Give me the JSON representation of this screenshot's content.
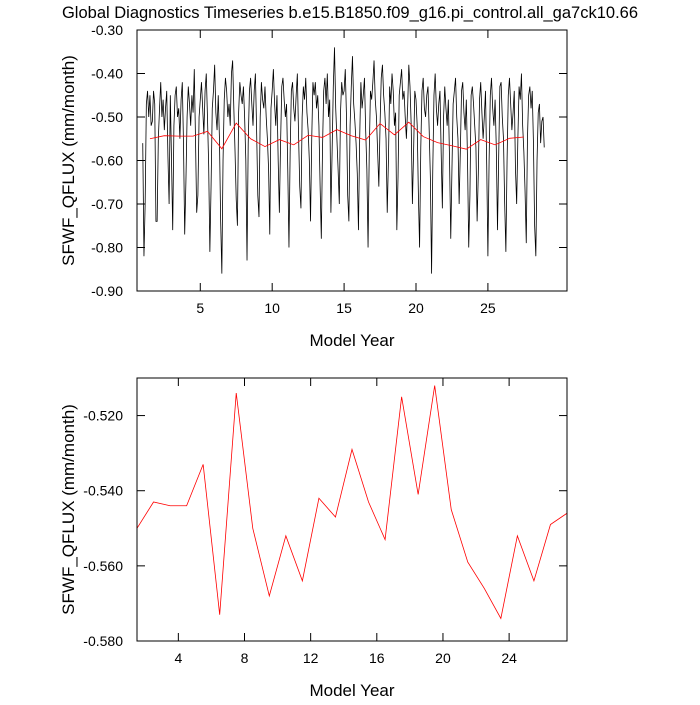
{
  "chart_data": [
    {
      "type": "line",
      "title": "Global Diagnostics Timeseries b.e15.B1850.f09_g16.pi_control.all_ga7ck10.66",
      "x_label": "Model Year",
      "y_label": "SFWF_QFLUX (mm/month)",
      "xlim": [
        0.6,
        30.5
      ],
      "xticks": [
        5,
        10,
        15,
        20,
        25
      ],
      "ylim": [
        -0.9,
        -0.3
      ],
      "yticks": [
        {
          "value": -0.9,
          "label": "-0.90"
        },
        {
          "value": -0.8,
          "label": "-0.80"
        },
        {
          "value": -0.7,
          "label": "-0.70"
        },
        {
          "value": -0.6,
          "label": "-0.60"
        },
        {
          "value": -0.5,
          "label": "-0.50"
        },
        {
          "value": -0.4,
          "label": "-0.40"
        },
        {
          "value": -0.3,
          "label": "-0.30"
        }
      ],
      "series": [
        {
          "color": "#000000",
          "x": [
            1,
            1.083,
            1.167,
            1.25,
            1.333,
            1.417,
            1.5,
            1.583,
            1.667,
            1.75,
            1.833,
            1.917,
            2,
            2.083,
            2.167,
            2.25,
            2.333,
            2.417,
            2.5,
            2.583,
            2.667,
            2.75,
            2.833,
            2.917,
            3,
            3.083,
            3.167,
            3.25,
            3.333,
            3.417,
            3.5,
            3.583,
            3.667,
            3.75,
            3.833,
            3.917,
            4,
            4.083,
            4.167,
            4.25,
            4.333,
            4.417,
            4.5,
            4.583,
            4.667,
            4.75,
            4.833,
            4.917,
            5,
            5.083,
            5.167,
            5.25,
            5.333,
            5.417,
            5.5,
            5.583,
            5.667,
            5.75,
            5.833,
            5.917,
            6,
            6.083,
            6.167,
            6.25,
            6.333,
            6.417,
            6.5,
            6.583,
            6.667,
            6.75,
            6.833,
            6.917,
            7,
            7.083,
            7.167,
            7.25,
            7.333,
            7.417,
            7.5,
            7.583,
            7.667,
            7.75,
            7.833,
            7.917,
            8,
            8.083,
            8.167,
            8.25,
            8.333,
            8.417,
            8.5,
            8.583,
            8.667,
            8.75,
            8.833,
            8.917,
            9,
            9.083,
            9.167,
            9.25,
            9.333,
            9.417,
            9.5,
            9.583,
            9.667,
            9.75,
            9.833,
            9.917,
            10,
            10.083,
            10.167,
            10.25,
            10.333,
            10.417,
            10.5,
            10.583,
            10.667,
            10.75,
            10.833,
            10.917,
            11,
            11.083,
            11.167,
            11.25,
            11.333,
            11.417,
            11.5,
            11.583,
            11.667,
            11.75,
            11.833,
            11.917,
            12,
            12.083,
            12.167,
            12.25,
            12.333,
            12.417,
            12.5,
            12.583,
            12.667,
            12.75,
            12.833,
            12.917,
            13,
            13.083,
            13.167,
            13.25,
            13.333,
            13.417,
            13.5,
            13.583,
            13.667,
            13.75,
            13.833,
            13.917,
            14,
            14.083,
            14.167,
            14.25,
            14.333,
            14.417,
            14.5,
            14.583,
            14.667,
            14.75,
            14.833,
            14.917,
            15,
            15.083,
            15.167,
            15.25,
            15.333,
            15.417,
            15.5,
            15.583,
            15.667,
            15.75,
            15.833,
            15.917,
            16,
            16.083,
            16.167,
            16.25,
            16.333,
            16.417,
            16.5,
            16.583,
            16.667,
            16.75,
            16.833,
            16.917,
            17,
            17.083,
            17.167,
            17.25,
            17.333,
            17.417,
            17.5,
            17.583,
            17.667,
            17.75,
            17.833,
            17.917,
            18,
            18.083,
            18.167,
            18.25,
            18.333,
            18.417,
            18.5,
            18.583,
            18.667,
            18.75,
            18.833,
            18.917,
            19,
            19.083,
            19.167,
            19.25,
            19.333,
            19.417,
            19.5,
            19.583,
            19.667,
            19.75,
            19.833,
            19.917,
            20,
            20.083,
            20.167,
            20.25,
            20.333,
            20.417,
            20.5,
            20.583,
            20.667,
            20.75,
            20.833,
            20.917,
            21,
            21.083,
            21.167,
            21.25,
            21.333,
            21.417,
            21.5,
            21.583,
            21.667,
            21.75,
            21.833,
            21.917,
            22,
            22.083,
            22.167,
            22.25,
            22.333,
            22.417,
            22.5,
            22.583,
            22.667,
            22.75,
            22.833,
            22.917,
            23,
            23.083,
            23.167,
            23.25,
            23.333,
            23.417,
            23.5,
            23.583,
            23.667,
            23.75,
            23.833,
            23.917,
            24,
            24.083,
            24.167,
            24.25,
            24.333,
            24.417,
            24.5,
            24.583,
            24.667,
            24.75,
            24.833,
            24.917,
            25,
            25.083,
            25.167,
            25.25,
            25.333,
            25.417,
            25.5,
            25.583,
            25.667,
            25.75,
            25.833,
            25.917,
            26,
            26.083,
            26.167,
            26.25,
            26.333,
            26.417,
            26.5,
            26.583,
            26.667,
            26.75,
            26.833,
            26.917,
            27,
            27.083,
            27.167,
            27.25,
            27.333,
            27.417,
            27.5,
            27.583,
            27.667,
            27.75,
            27.833,
            27.917,
            28,
            28.083,
            28.167,
            28.25,
            28.333,
            28.417,
            28.5,
            28.583,
            28.667,
            28.75,
            28.833,
            28.917
          ],
          "values": [
            -0.56,
            -0.82,
            -0.7,
            -0.47,
            -0.44,
            -0.5,
            -0.45,
            -0.52,
            -0.51,
            -0.44,
            -0.47,
            -0.74,
            -0.74,
            -0.55,
            -0.48,
            -0.42,
            -0.5,
            -0.46,
            -0.53,
            -0.48,
            -0.44,
            -0.59,
            -0.7,
            -0.45,
            -0.6,
            -0.76,
            -0.52,
            -0.45,
            -0.43,
            -0.5,
            -0.48,
            -0.55,
            -0.46,
            -0.42,
            -0.56,
            -0.77,
            -0.65,
            -0.5,
            -0.43,
            -0.47,
            -0.52,
            -0.45,
            -0.49,
            -0.39,
            -0.55,
            -0.72,
            -0.68,
            -0.5,
            -0.46,
            -0.42,
            -0.48,
            -0.54,
            -0.44,
            -0.4,
            -0.5,
            -0.61,
            -0.81,
            -0.66,
            -0.48,
            -0.44,
            -0.38,
            -0.49,
            -0.53,
            -0.45,
            -0.55,
            -0.74,
            -0.86,
            -0.6,
            -0.46,
            -0.41,
            -0.44,
            -0.5,
            -0.47,
            -0.52,
            -0.4,
            -0.37,
            -0.48,
            -0.58,
            -0.69,
            -0.75,
            -0.49,
            -0.42,
            -0.45,
            -0.47,
            -0.43,
            -0.5,
            -0.6,
            -0.83,
            -0.56,
            -0.44,
            -0.41,
            -0.47,
            -0.52,
            -0.44,
            -0.4,
            -0.53,
            -0.68,
            -0.73,
            -0.5,
            -0.42,
            -0.46,
            -0.48,
            -0.43,
            -0.5,
            -0.55,
            -0.62,
            -0.77,
            -0.48,
            -0.44,
            -0.39,
            -0.47,
            -0.52,
            -0.45,
            -0.6,
            -0.72,
            -0.56,
            -0.43,
            -0.41,
            -0.46,
            -0.5,
            -0.47,
            -0.62,
            -0.8,
            -0.58,
            -0.44,
            -0.42,
            -0.48,
            -0.51,
            -0.45,
            -0.4,
            -0.54,
            -0.66,
            -0.71,
            -0.5,
            -0.43,
            -0.46,
            -0.41,
            -0.49,
            -0.53,
            -0.6,
            -0.74,
            -0.55,
            -0.42,
            -0.45,
            -0.42,
            -0.48,
            -0.45,
            -0.52,
            -0.66,
            -0.78,
            -0.57,
            -0.44,
            -0.41,
            -0.47,
            -0.4,
            -0.5,
            -0.46,
            -0.72,
            -0.58,
            -0.43,
            -0.34,
            -0.48,
            -0.55,
            -0.62,
            -0.7,
            -0.49,
            -0.42,
            -0.45,
            -0.44,
            -0.39,
            -0.5,
            -0.68,
            -0.74,
            -0.52,
            -0.43,
            -0.36,
            -0.47,
            -0.51,
            -0.56,
            -0.63,
            -0.76,
            -0.55,
            -0.42,
            -0.48,
            -0.45,
            -0.41,
            -0.53,
            -0.62,
            -0.8,
            -0.58,
            -0.44,
            -0.46,
            -0.42,
            -0.37,
            -0.46,
            -0.5,
            -0.58,
            -0.66,
            -0.52,
            -0.41,
            -0.38,
            -0.45,
            -0.49,
            -0.55,
            -0.72,
            -0.6,
            -0.43,
            -0.47,
            -0.4,
            -0.44,
            -0.52,
            -0.49,
            -0.76,
            -0.64,
            -0.45,
            -0.42,
            -0.39,
            -0.46,
            -0.44,
            -0.5,
            -0.55,
            -0.48,
            -0.38,
            -0.43,
            -0.52,
            -0.7,
            -0.58,
            -0.44,
            -0.46,
            -0.52,
            -0.68,
            -0.8,
            -0.57,
            -0.44,
            -0.41,
            -0.48,
            -0.5,
            -0.45,
            -0.43,
            -0.53,
            -0.64,
            -0.86,
            -0.62,
            -0.45,
            -0.4,
            -0.48,
            -0.52,
            -0.47,
            -0.44,
            -0.58,
            -0.71,
            -0.5,
            -0.43,
            -0.48,
            -0.52,
            -0.46,
            -0.6,
            -0.78,
            -0.62,
            -0.47,
            -0.44,
            -0.41,
            -0.5,
            -0.55,
            -0.7,
            -0.58,
            -0.44,
            -0.42,
            -0.49,
            -0.53,
            -0.46,
            -0.6,
            -0.8,
            -0.68,
            -0.45,
            -0.43,
            -0.47,
            -0.52,
            -0.57,
            -0.74,
            -0.63,
            -0.46,
            -0.42,
            -0.49,
            -0.55,
            -0.5,
            -0.44,
            -0.61,
            -0.82,
            -0.6,
            -0.45,
            -0.41,
            -0.48,
            -0.52,
            -0.46,
            -0.57,
            -0.76,
            -0.59,
            -0.43,
            -0.42,
            -0.5,
            -0.55,
            -0.7,
            -0.81,
            -0.6,
            -0.45,
            -0.41,
            -0.47,
            -0.53,
            -0.49,
            -0.44,
            -0.62,
            -0.7,
            -0.55,
            -0.43,
            -0.46,
            -0.4,
            -0.52,
            -0.58,
            -0.67,
            -0.79,
            -0.55,
            -0.45,
            -0.43,
            -0.48,
            -0.44,
            -0.56,
            -0.75,
            -0.82,
            -0.6,
            -0.49,
            -0.47,
            -0.56,
            -0.51,
            -0.5,
            -0.57
          ]
        },
        {
          "color": "#ff0000",
          "x": [
            1.5,
            2.5,
            3.5,
            4.5,
            5.5,
            6.5,
            7.5,
            8.5,
            9.5,
            10.5,
            11.5,
            12.5,
            13.5,
            14.5,
            15.5,
            16.5,
            17.5,
            18.5,
            19.5,
            20.5,
            21.5,
            22.5,
            23.5,
            24.5,
            25.5,
            26.5,
            27.5
          ],
          "values": [
            -0.55,
            -0.543,
            -0.544,
            -0.544,
            -0.533,
            -0.573,
            -0.514,
            -0.55,
            -0.568,
            -0.552,
            -0.564,
            -0.542,
            -0.547,
            -0.529,
            -0.543,
            -0.553,
            -0.515,
            -0.541,
            -0.512,
            -0.545,
            -0.559,
            -0.566,
            -0.574,
            -0.552,
            -0.564,
            -0.549,
            -0.546
          ]
        }
      ]
    },
    {
      "type": "line",
      "x_label": "Model Year",
      "y_label": "SFWF_QFLUX (mm/month)",
      "xlim": [
        1.5,
        27.5
      ],
      "xticks": [
        4,
        8,
        12,
        16,
        20,
        24
      ],
      "ylim": [
        -0.58,
        -0.51
      ],
      "yticks": [
        {
          "value": -0.58,
          "label": "-0.580"
        },
        {
          "value": -0.56,
          "label": "-0.560"
        },
        {
          "value": -0.54,
          "label": "-0.540"
        },
        {
          "value": -0.52,
          "label": "-0.520"
        }
      ],
      "series": [
        {
          "color": "#ff0000",
          "x": [
            1.5,
            2.5,
            3.5,
            4.5,
            5.5,
            6.5,
            7.5,
            8.5,
            9.5,
            10.5,
            11.5,
            12.5,
            13.5,
            14.5,
            15.5,
            16.5,
            17.5,
            18.5,
            19.5,
            20.5,
            21.5,
            22.5,
            23.5,
            24.5,
            25.5,
            26.5,
            27.5
          ],
          "values": [
            -0.55,
            -0.543,
            -0.544,
            -0.544,
            -0.533,
            -0.573,
            -0.514,
            -0.55,
            -0.568,
            -0.552,
            -0.564,
            -0.542,
            -0.547,
            -0.529,
            -0.543,
            -0.553,
            -0.515,
            -0.541,
            -0.512,
            -0.545,
            -0.559,
            -0.566,
            -0.574,
            -0.552,
            -0.564,
            -0.549,
            -0.546
          ]
        }
      ]
    }
  ]
}
